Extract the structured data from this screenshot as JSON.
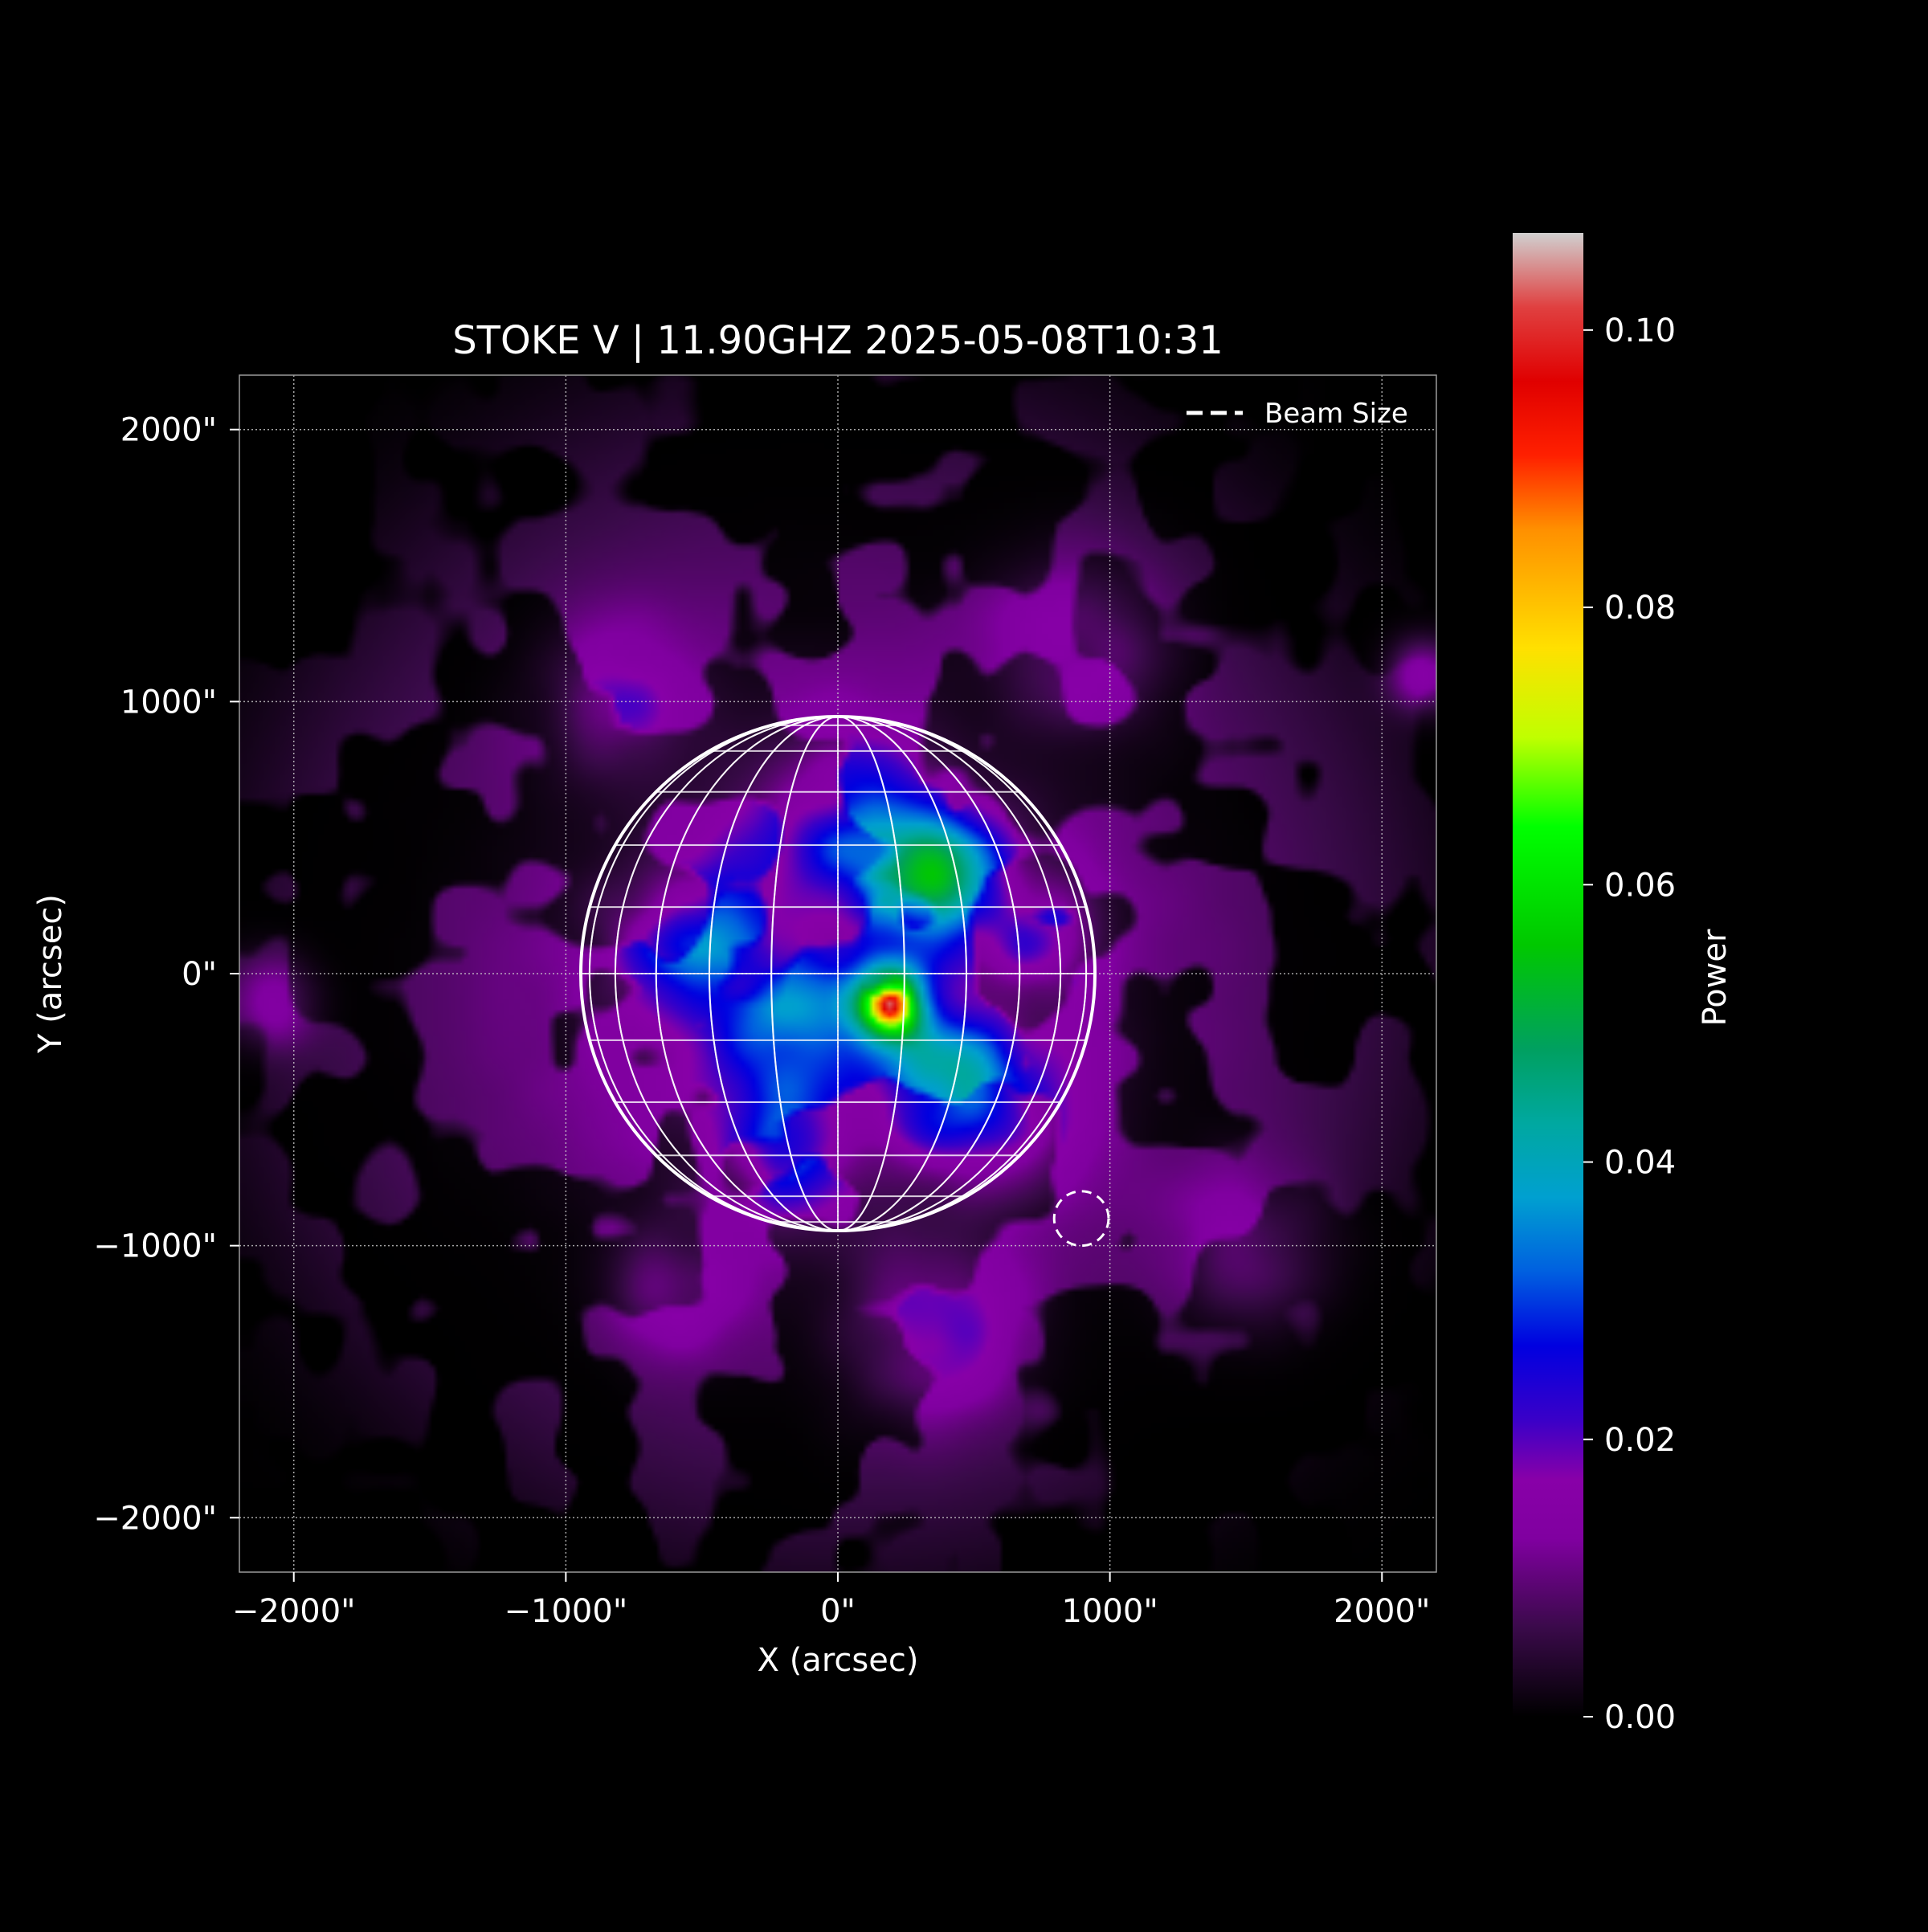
{
  "chart_data": {
    "type": "heatmap",
    "title": "STOKE V | 11.90GHZ 2025-05-08T10:31",
    "xlabel": "X (arcsec)",
    "ylabel": "Y (arcsec)",
    "xlim": [
      -2200,
      2200
    ],
    "ylim": [
      -2200,
      2200
    ],
    "x_ticks": [
      -2000,
      -1000,
      0,
      1000,
      2000
    ],
    "x_tick_labels": [
      "−2000\"",
      "−1000\"",
      "0\"",
      "1000\"",
      "2000\""
    ],
    "y_ticks": [
      2000,
      1000,
      0,
      -1000,
      -2000
    ],
    "y_tick_labels": [
      "2000\"",
      "1000\"",
      "0\"",
      "−1000\"",
      "−2000\""
    ],
    "grid": true,
    "legend": {
      "placement": "top-right",
      "entries": [
        "Beam Size"
      ]
    },
    "solar_disk": {
      "center": [
        0,
        0
      ],
      "radius": 945,
      "meridian_step_deg": 15,
      "parallel_step_deg": 15
    },
    "beam": {
      "center": [
        895,
        -900
      ],
      "radius": 100
    },
    "peak": {
      "x": 190,
      "y": -110,
      "value": 0.106
    },
    "colorbar": {
      "label": "Power",
      "min": 0.0,
      "max": 0.107,
      "ticks": [
        0.0,
        0.02,
        0.04,
        0.06,
        0.08,
        0.1
      ],
      "tick_labels": [
        "0.00",
        "0.02",
        "0.04",
        "0.06",
        "0.08",
        "0.10"
      ],
      "stops": [
        [
          0.0,
          "#000000"
        ],
        [
          0.06,
          "#3a0a4a"
        ],
        [
          0.12,
          "#8000a0"
        ],
        [
          0.16,
          "#8800a8"
        ],
        [
          0.2,
          "#3a00c8"
        ],
        [
          0.25,
          "#0000e0"
        ],
        [
          0.3,
          "#0060e0"
        ],
        [
          0.35,
          "#00a0d0"
        ],
        [
          0.4,
          "#00a8a0"
        ],
        [
          0.45,
          "#00a060"
        ],
        [
          0.52,
          "#00c800"
        ],
        [
          0.6,
          "#00ff00"
        ],
        [
          0.66,
          "#c0ff00"
        ],
        [
          0.72,
          "#ffe000"
        ],
        [
          0.8,
          "#ff9000"
        ],
        [
          0.85,
          "#ff2000"
        ],
        [
          0.9,
          "#e00000"
        ],
        [
          0.95,
          "#e04040"
        ],
        [
          1.0,
          "#d0d0d0"
        ]
      ]
    },
    "sources": [
      {
        "x": 190,
        "y": -110,
        "amp": 0.07,
        "sigma": 85
      },
      {
        "x": 190,
        "y": -110,
        "amp": 0.036,
        "sigma": 40
      },
      {
        "x": 380,
        "y": 380,
        "amp": 0.026,
        "sigma": 150
      },
      {
        "x": 330,
        "y": -400,
        "amp": 0.022,
        "sigma": 160
      },
      {
        "x": -200,
        "y": -180,
        "amp": 0.018,
        "sigma": 180
      },
      {
        "x": 50,
        "y": 500,
        "amp": 0.018,
        "sigma": 200
      },
      {
        "x": -550,
        "y": 150,
        "amp": 0.016,
        "sigma": 160
      },
      {
        "x": 600,
        "y": -500,
        "amp": 0.015,
        "sigma": 180
      },
      {
        "x": -200,
        "y": -650,
        "amp": 0.014,
        "sigma": 150
      },
      {
        "x": 700,
        "y": 150,
        "amp": 0.012,
        "sigma": 150
      },
      {
        "x": 0,
        "y": 0,
        "amp": 0.012,
        "sigma": 600
      },
      {
        "x": 350,
        "y": -1300,
        "amp": 0.011,
        "sigma": 220
      },
      {
        "x": -600,
        "y": -1150,
        "amp": 0.009,
        "sigma": 160
      },
      {
        "x": 900,
        "y": 1200,
        "amp": 0.009,
        "sigma": 220
      },
      {
        "x": -800,
        "y": 1000,
        "amp": 0.009,
        "sigma": 200
      },
      {
        "x": 2150,
        "y": 1100,
        "amp": 0.014,
        "sigma": 90
      },
      {
        "x": -2100,
        "y": -100,
        "amp": 0.012,
        "sigma": 110
      },
      {
        "x": 1500,
        "y": -1000,
        "amp": 0.008,
        "sigma": 200
      }
    ],
    "background_level": 0.009
  }
}
